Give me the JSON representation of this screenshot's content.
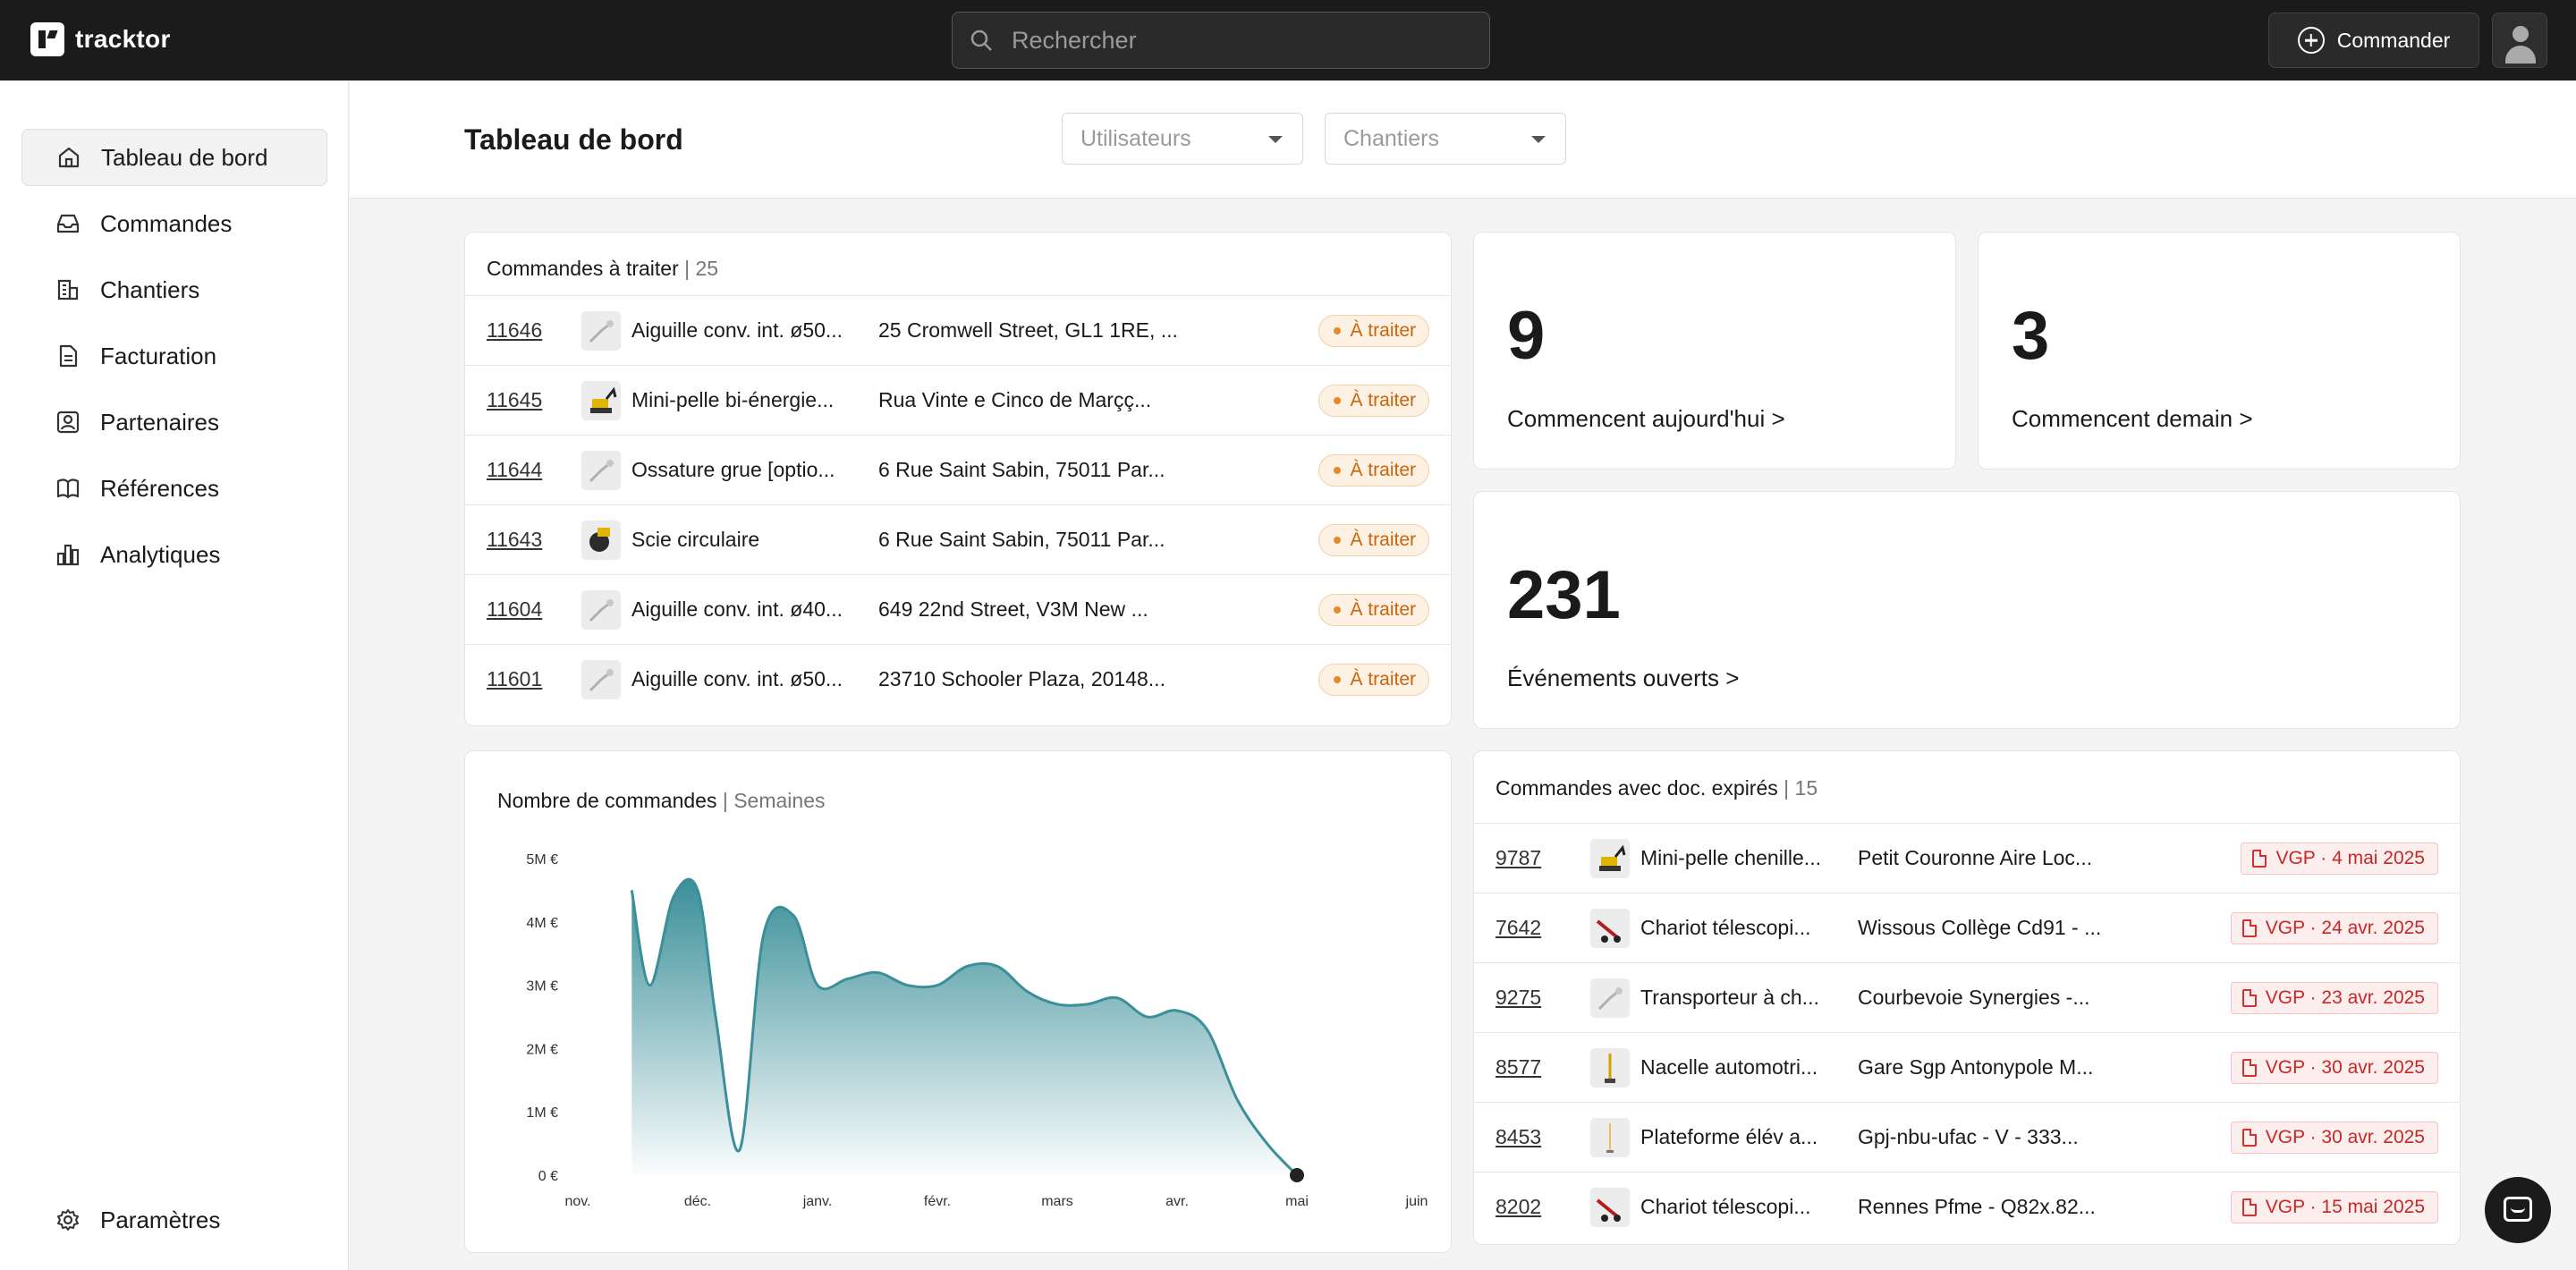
{
  "app": {
    "name": "tracktor"
  },
  "topbar": {
    "search_placeholder": "Rechercher",
    "commander_label": "Commander"
  },
  "sidebar": {
    "items": [
      {
        "label": "Tableau de bord",
        "icon": "home-icon",
        "active": true
      },
      {
        "label": "Commandes",
        "icon": "inbox-icon"
      },
      {
        "label": "Chantiers",
        "icon": "building-icon"
      },
      {
        "label": "Facturation",
        "icon": "document-icon"
      },
      {
        "label": "Partenaires",
        "icon": "contact-icon"
      },
      {
        "label": "Références",
        "icon": "book-icon"
      },
      {
        "label": "Analytiques",
        "icon": "analytics-icon"
      }
    ],
    "settings_label": "Paramètres"
  },
  "header": {
    "title": "Tableau de bord",
    "filters": {
      "users_placeholder": "Utilisateurs",
      "sites_placeholder": "Chantiers"
    }
  },
  "orders_to_process": {
    "title": "Commandes à traiter",
    "count": "| 25",
    "rows": [
      {
        "id": "11646",
        "name": "Aiguille conv. int. ø50...",
        "address": "25 Cromwell Street, GL1 1RE, ...",
        "status": "À traiter"
      },
      {
        "id": "11645",
        "name": "Mini-pelle bi-énergie...",
        "address": "Rua Vinte e Cinco de Marçç...",
        "status": "À traiter"
      },
      {
        "id": "11644",
        "name": "Ossature grue [optio...",
        "address": "6 Rue Saint Sabin, 75011 Par...",
        "status": "À traiter"
      },
      {
        "id": "11643",
        "name": "Scie circulaire",
        "address": "6 Rue Saint Sabin, 75011 Par...",
        "status": "À traiter"
      },
      {
        "id": "11604",
        "name": "Aiguille conv. int. ø40...",
        "address": "649 22nd Street, V3M New ...",
        "status": "À traiter"
      },
      {
        "id": "11601",
        "name": "Aiguille conv. int. ø50...",
        "address": "23710 Schooler Plaza, 20148...",
        "status": "À traiter"
      }
    ]
  },
  "stats": {
    "today": {
      "value": "9",
      "label": "Commencent aujourd'hui >"
    },
    "tomorrow": {
      "value": "3",
      "label": "Commencent demain >"
    },
    "events": {
      "value": "231",
      "label": "Événements ouverts >"
    }
  },
  "chart_card": {
    "title": "Nombre de commandes",
    "subtitle": "| Semaines"
  },
  "chart_data": {
    "type": "area",
    "ylim": [
      0,
      5
    ],
    "y_ticks": [
      "0 €",
      "1M €",
      "2M €",
      "3M €",
      "4M €",
      "5M €"
    ],
    "x_ticks": [
      "nov.",
      "déc.",
      "janv.",
      "févr.",
      "mars",
      "avr.",
      "mai",
      "juin"
    ],
    "x": [
      0.45,
      0.6,
      0.8,
      1.0,
      1.15,
      1.35,
      1.55,
      1.8,
      2.0,
      2.25,
      2.5,
      2.75,
      3.0,
      3.25,
      3.5,
      3.75,
      4.0,
      4.25,
      4.5,
      4.75,
      5.0,
      5.25,
      5.5,
      5.75,
      6.0,
      6.25,
      6.5
    ],
    "y": [
      4.5,
      3.0,
      4.4,
      4.5,
      2.5,
      0.4,
      3.8,
      4.1,
      3.0,
      3.1,
      3.2,
      3.0,
      3.0,
      3.3,
      3.3,
      2.9,
      2.7,
      2.7,
      2.8,
      2.5,
      2.6,
      2.3,
      1.2,
      0.5,
      0.0,
      0.0,
      0.0
    ],
    "series_color": "#3a8f99"
  },
  "expired_docs": {
    "title": "Commandes avec doc. expirés",
    "count": "| 15",
    "rows": [
      {
        "id": "9787",
        "name": "Mini-pelle chenille...",
        "site": "Petit Couronne Aire Loc...",
        "badge": "VGP · 4 mai 2025"
      },
      {
        "id": "7642",
        "name": "Chariot télescopi...",
        "site": "Wissous Collège Cd91 - ...",
        "badge": "VGP · 24 avr. 2025"
      },
      {
        "id": "9275",
        "name": "Transporteur à ch...",
        "site": "Courbevoie Synergies -...",
        "badge": "VGP · 23 avr. 2025"
      },
      {
        "id": "8577",
        "name": "Nacelle automotri...",
        "site": "Gare Sgp Antonypole M...",
        "badge": "VGP · 30 avr. 2025"
      },
      {
        "id": "8453",
        "name": "Plateforme élév a...",
        "site": "Gpj-nbu-ufac - V - 333...",
        "badge": "VGP · 30 avr. 2025"
      },
      {
        "id": "8202",
        "name": "Chariot télescopi...",
        "site": "Rennes Pfme - Q82x.82...",
        "badge": "VGP · 15 mai 2025"
      }
    ]
  },
  "colors": {
    "accent": "#3a8f99",
    "topbar": "#1b1b1b",
    "warning": "#c8650d",
    "danger": "#c62828"
  }
}
